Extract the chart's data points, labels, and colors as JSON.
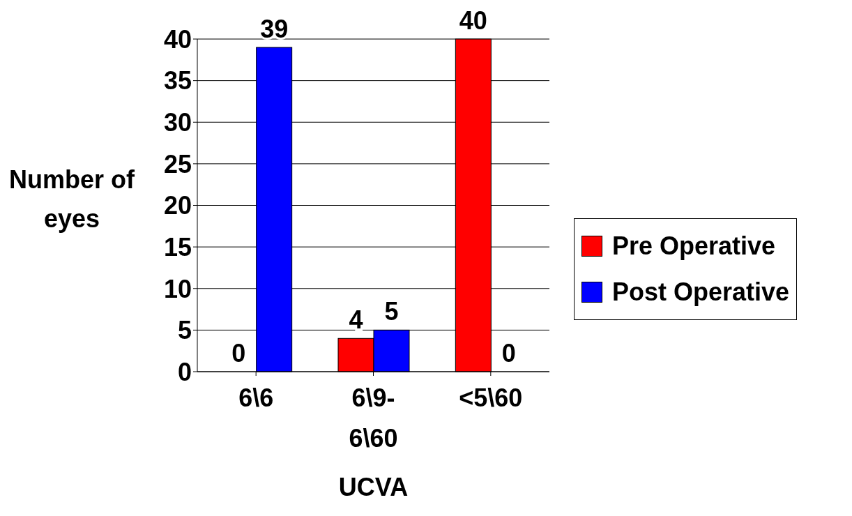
{
  "chart_data": {
    "type": "bar",
    "xlabel": "UCVA",
    "ylabel": "Number of eyes",
    "categories": [
      "6\\6",
      "6\\9-6\\60",
      "<5\\60"
    ],
    "series": [
      {
        "name": "Pre Operative",
        "color": "#ff0000",
        "values": [
          0,
          4,
          40
        ]
      },
      {
        "name": "Post Operative",
        "color": "#0000ff",
        "values": [
          39,
          5,
          0
        ]
      }
    ],
    "ylim": [
      0,
      40
    ],
    "yticks": [
      0,
      5,
      10,
      15,
      20,
      25,
      30,
      35,
      40
    ],
    "grid": "y",
    "legend": "right",
    "data_labels": true
  }
}
